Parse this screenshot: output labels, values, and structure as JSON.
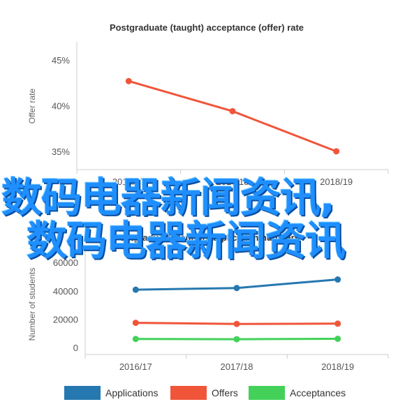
{
  "overlay": {
    "line1": "数码电器新闻资讯,",
    "line2": "数码电器新闻资讯"
  },
  "chart_data": [
    {
      "type": "line",
      "title": "Postgraduate (taught) acceptance (offer) rate",
      "ylabel": "Offer rate",
      "categories": [
        "2016/17",
        "2017/18",
        "2018/19"
      ],
      "series": [
        {
          "values": [
            42.7,
            39.4,
            35.0
          ],
          "color": "#f0553a"
        }
      ],
      "yticks": [
        "35%",
        "40%",
        "45%"
      ],
      "ylim": [
        33,
        47
      ],
      "grid": false
    },
    {
      "type": "line",
      "title": "Postgraduate (taught) application numbers",
      "ylabel": "Number of students",
      "categories": [
        "2016/17",
        "2017/18",
        "2018/19"
      ],
      "series": [
        {
          "name": "Applications",
          "values": [
            40800,
            42000,
            48000
          ],
          "color": "#2678b0"
        },
        {
          "name": "Offers",
          "values": [
            17400,
            16600,
            16800
          ],
          "color": "#f0553a"
        },
        {
          "name": "Acceptances",
          "values": [
            6000,
            5800,
            6100
          ],
          "color": "#43d15a"
        }
      ],
      "yticks": [
        "0",
        "20000",
        "40000",
        "60000"
      ],
      "ylim": [
        -5000,
        68000
      ],
      "legend": "bottom",
      "grid": false
    }
  ]
}
